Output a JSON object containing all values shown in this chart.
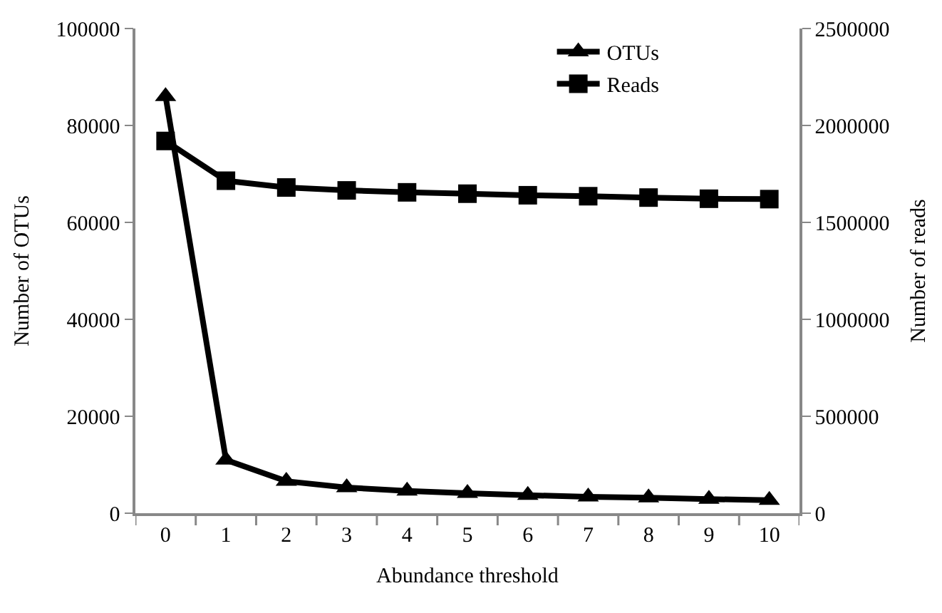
{
  "chart_data": {
    "type": "line",
    "xlabel": "Abundance threshold",
    "ylabel": "Number of OTUs",
    "y2label": "Number of reads",
    "categories": [
      "0",
      "1",
      "2",
      "3",
      "4",
      "5",
      "6",
      "7",
      "8",
      "9",
      "10"
    ],
    "series": [
      {
        "name": "OTUs",
        "color": "#000000",
        "marker": "triangle",
        "values": [
          86000,
          11000,
          6600,
          5300,
          4600,
          4100,
          3700,
          3400,
          3200,
          2900,
          2700
        ]
      },
      {
        "name": "Reads",
        "color": "#000000",
        "marker": "square",
        "axis": "y2",
        "values": [
          1920000,
          1715000,
          1680000,
          1665000,
          1655000,
          1648000,
          1640000,
          1635000,
          1628000,
          1622000,
          1620000
        ]
      }
    ],
    "ylim": [
      0,
      100000
    ],
    "yticks": [
      0,
      20000,
      40000,
      60000,
      80000,
      100000
    ],
    "y2lim": [
      0,
      2500000
    ],
    "y2ticks": [
      0,
      500000,
      1000000,
      1500000,
      2000000,
      2500000
    ],
    "legend": "top right",
    "line_style": "solid"
  }
}
